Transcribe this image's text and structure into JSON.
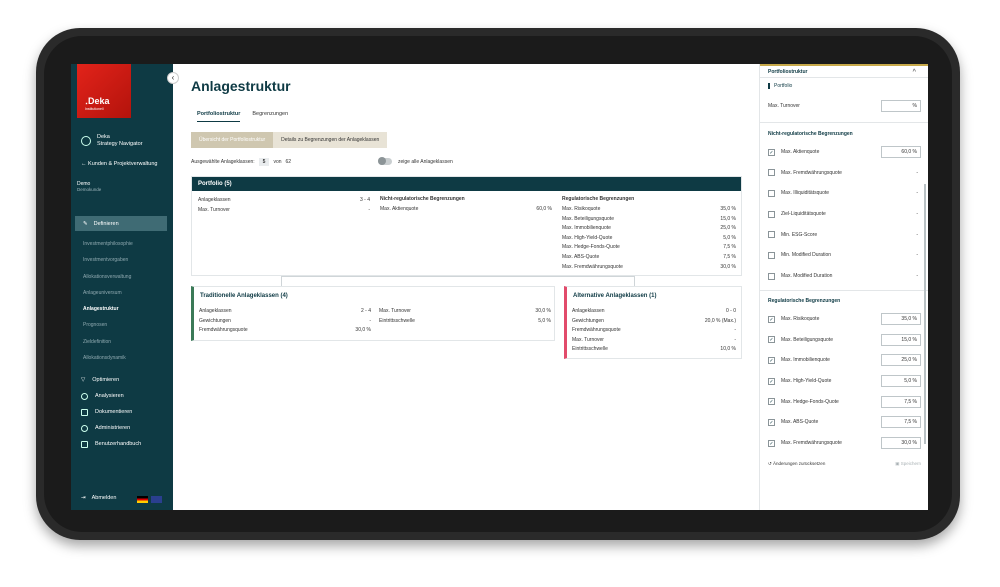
{
  "sidebar": {
    "logo_word": "․Deka",
    "logo_sub": "Institutionell",
    "app_name_line1": "Deka",
    "app_name_line2": "Strategy Navigator",
    "back_link": "Kunden & Projektverwaltung",
    "client_name": "Demo",
    "client_sub": "Demokunde",
    "active_section": "Definieren",
    "sub_items": [
      "Investmentphilosophie",
      "Investmentvorgaben",
      "Allokationsverwaltung",
      "Anlageuniversum",
      "Anlagestruktur",
      "Prognosen",
      "Zieldefinition",
      "Allokationsdynamik"
    ],
    "main_items": [
      "Optimieren",
      "Analysieren",
      "Dokumentieren",
      "Administrieren",
      "Benutzerhandbuch"
    ],
    "logout": "Abmelden"
  },
  "main": {
    "title": "Anlagestruktur",
    "tabs": [
      "Portfoliostruktur",
      "Begrenzungen"
    ],
    "segments": [
      "Übersicht der Portfoliostruktur",
      "Details zu Begrenzungen der Anlageklassen"
    ],
    "selected_label": "Ausgewählte Anlageklassen:",
    "selected_count": "5",
    "selected_of": "von",
    "selected_total": "62",
    "toggle_label": "zeige alle Anlageklassen"
  },
  "portfolio": {
    "header": "Portfolio (5)",
    "col1": [
      {
        "label": "Anlageklassen",
        "value": "3 - 4"
      },
      {
        "label": "Max. Turnover",
        "value": "-"
      }
    ],
    "col2_title": "Nicht-regulatorische Begrenzungen",
    "col2": [
      {
        "label": "Max. Aktienquote",
        "value": "60,0 %"
      }
    ],
    "col3_title": "Regulatorische Begrenzungen",
    "col3": [
      {
        "label": "Max. Risikoquote",
        "value": "35,0 %"
      },
      {
        "label": "Max. Beteiligungsquote",
        "value": "15,0 %"
      },
      {
        "label": "Max. Immobilienquote",
        "value": "25,0 %"
      },
      {
        "label": "Max. High-Yield-Quote",
        "value": "5,0 %"
      },
      {
        "label": "Max. Hedge-Fonds-Quote",
        "value": "7,5 %"
      },
      {
        "label": "Max. ABS-Quote",
        "value": "7,5 %"
      },
      {
        "label": "Max. Fremdwährungsquote",
        "value": "30,0 %"
      }
    ]
  },
  "traditional": {
    "title": "Traditionelle Anlageklassen (4)",
    "col1": [
      {
        "label": "Anlageklassen",
        "value": "2 - 4"
      },
      {
        "label": "Gewichtungen",
        "value": "-"
      },
      {
        "label": "Fremdwährungsquote",
        "value": "30,0 %"
      }
    ],
    "col2": [
      {
        "label": "Max. Turnover",
        "value": "30,0 %"
      },
      {
        "label": "Eintrittsschwelle",
        "value": "5,0 %"
      }
    ]
  },
  "alternative": {
    "title": "Alternative Anlageklassen (1)",
    "col1": [
      {
        "label": "Anlageklassen",
        "value": "0 - 0"
      },
      {
        "label": "Gewichtungen",
        "value": "20,0 % (Max.)"
      },
      {
        "label": "Fremdwährungsquote",
        "value": "-"
      },
      {
        "label": "Max. Turnover",
        "value": "-"
      },
      {
        "label": "Eintrittsschwelle",
        "value": "10,0 %"
      }
    ]
  },
  "panel": {
    "header": "Portfoliostruktur",
    "sub": "Portfolio",
    "turnover_label": "Max. Turnover",
    "turnover_value": "%",
    "nonreg_title": "Nicht-regulatorische Begrenzungen",
    "nonreg": [
      {
        "label": "Max. Aktienquote",
        "checked": true,
        "value": "60,0 %"
      },
      {
        "label": "Max. Fremdwährungsquote",
        "checked": false,
        "value": "-"
      },
      {
        "label": "Max. Illiquiditätsquote",
        "checked": false,
        "value": "-"
      },
      {
        "label": "Ziel-Liquiditätsquote",
        "checked": false,
        "value": "-"
      },
      {
        "label": "Min. ESG-Score",
        "checked": false,
        "value": "-"
      },
      {
        "label": "Min. Modified Duration",
        "checked": false,
        "value": "-"
      },
      {
        "label": "Max. Modified Duration",
        "checked": false,
        "value": "-"
      }
    ],
    "reg_title": "Regulatorische Begrenzungen",
    "reg": [
      {
        "label": "Max. Risikoquote",
        "checked": true,
        "value": "35,0 %"
      },
      {
        "label": "Max. Beteiligungsquote",
        "checked": true,
        "value": "15,0 %"
      },
      {
        "label": "Max. Immobilienquote",
        "checked": true,
        "value": "25,0 %"
      },
      {
        "label": "Max. High-Yield-Quote",
        "checked": true,
        "value": "5,0 %"
      },
      {
        "label": "Max. Hedge-Fonds-Quote",
        "checked": true,
        "value": "7,5 %"
      },
      {
        "label": "Max. ABS-Quote",
        "checked": true,
        "value": "7,5 %"
      },
      {
        "label": "Max. Fremdwährungsquote",
        "checked": true,
        "value": "30,0 %"
      }
    ],
    "reset": "Änderungen zurücksetzen",
    "save": "Speichern"
  }
}
